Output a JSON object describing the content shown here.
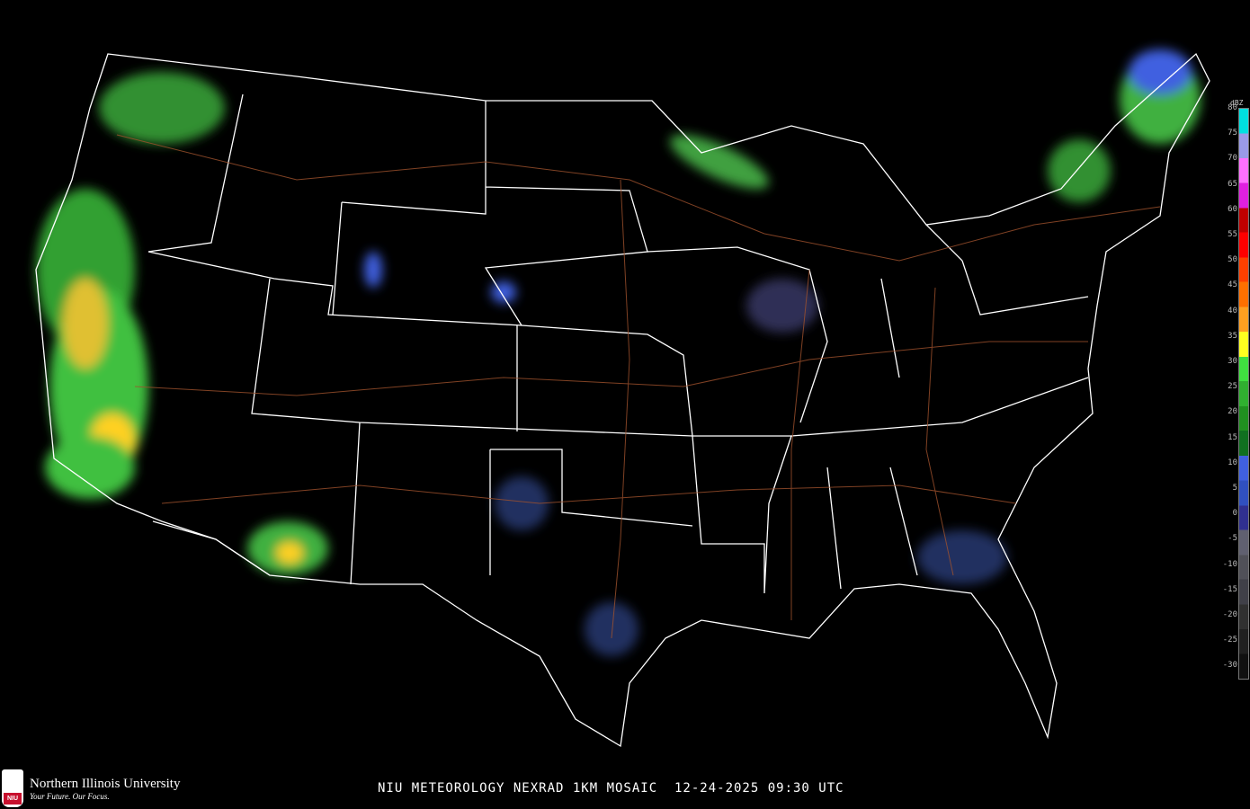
{
  "map": {
    "title": "NIU METEOROLOGY NEXRAD 1KM MOSAIC  12-24-2025 09:30 UTC",
    "background_color": "#000000",
    "border_color": "#ffffff",
    "highway_color": "#a0522d"
  },
  "legend": {
    "unit": "dBZ",
    "labels": [
      "80",
      "75",
      "70",
      "65",
      "60",
      "55",
      "50",
      "45",
      "40",
      "35",
      "30",
      "25",
      "20",
      "15",
      "10",
      "5",
      "0",
      "-5",
      "-10",
      "-15",
      "-20",
      "-25",
      "-30"
    ],
    "colors": [
      "#00e0e0",
      "#9a9ae8",
      "#ff70ff",
      "#e020e0",
      "#c00000",
      "#ff0000",
      "#ff4000",
      "#ff7000",
      "#ffa020",
      "#ffff20",
      "#40e040",
      "#30b030",
      "#209020",
      "#107020",
      "#4060e0",
      "#3050c0",
      "#303090",
      "#606070",
      "#505058",
      "#404048",
      "#303030",
      "#202020",
      "#101010"
    ]
  },
  "branding": {
    "university": "Northern Illinois University",
    "tagline": "Your Future. Our Focus.",
    "seal_text": "NIU"
  }
}
